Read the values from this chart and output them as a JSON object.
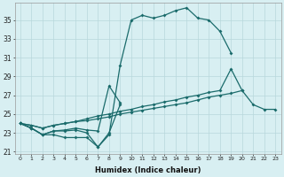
{
  "xlabel": "Humidex (Indice chaleur)",
  "background_color": "#d8eff2",
  "grid_color": "#b8d8dc",
  "line_color": "#1a6b6b",
  "xlim": [
    -0.5,
    23.5
  ],
  "ylim": [
    20.8,
    36.8
  ],
  "yticks": [
    21,
    23,
    25,
    27,
    29,
    31,
    33,
    35
  ],
  "xticks": [
    0,
    1,
    2,
    3,
    4,
    5,
    6,
    7,
    8,
    9,
    10,
    11,
    12,
    13,
    14,
    15,
    16,
    17,
    18,
    19,
    20,
    21,
    22,
    23
  ],
  "line1_x": [
    0,
    1,
    2,
    3,
    4,
    5,
    6,
    7,
    8,
    9,
    10,
    11,
    12,
    13,
    14,
    15,
    16,
    17,
    18,
    19
  ],
  "line1_y": [
    24.0,
    23.5,
    22.8,
    22.8,
    22.5,
    22.5,
    22.5,
    21.5,
    22.8,
    30.2,
    35.0,
    35.5,
    35.2,
    35.5,
    36.0,
    36.3,
    35.2,
    35.0,
    33.8,
    31.5
  ],
  "line2_x": [
    0,
    1,
    2,
    3,
    4,
    5,
    6,
    7,
    8,
    9,
    10,
    11,
    12,
    13,
    14,
    15,
    16,
    17,
    18,
    19,
    20,
    21,
    22,
    23
  ],
  "line2_y": [
    24.0,
    23.5,
    22.8,
    23.2,
    23.2,
    23.3,
    23.0,
    21.5,
    23.0,
    26.0,
    null,
    null,
    null,
    null,
    null,
    null,
    null,
    null,
    null,
    null,
    null,
    null,
    null,
    null
  ],
  "line3_x": [
    0,
    1,
    2,
    3,
    4,
    5,
    6,
    7,
    8,
    9,
    10,
    11,
    12,
    13,
    14,
    15,
    16,
    17,
    18,
    19,
    20,
    21,
    22,
    23
  ],
  "line3_y": [
    24.0,
    23.5,
    22.8,
    23.2,
    23.3,
    23.5,
    23.3,
    23.2,
    28.0,
    26.2,
    null,
    null,
    null,
    null,
    null,
    null,
    null,
    null,
    null,
    null,
    null,
    null,
    null,
    null
  ],
  "line4_x": [
    0,
    1,
    2,
    3,
    4,
    5,
    6,
    7,
    8,
    9,
    10,
    11,
    12,
    13,
    14,
    15,
    16,
    17,
    18,
    19,
    20,
    21,
    22,
    23
  ],
  "line4_y": [
    24.0,
    23.8,
    23.5,
    23.8,
    24.0,
    24.2,
    24.3,
    24.5,
    24.7,
    25.0,
    25.2,
    25.4,
    25.6,
    25.8,
    26.0,
    26.2,
    26.5,
    26.8,
    27.0,
    27.2,
    27.5,
    26.0,
    25.5,
    25.5
  ],
  "line5_x": [
    0,
    1,
    2,
    3,
    4,
    5,
    6,
    7,
    8,
    9,
    10,
    11,
    12,
    13,
    14,
    15,
    16,
    17,
    18,
    19,
    20,
    21,
    22,
    23
  ],
  "line5_y": [
    24.0,
    23.8,
    23.5,
    23.8,
    24.0,
    24.2,
    24.5,
    24.8,
    25.0,
    25.3,
    25.5,
    25.8,
    26.0,
    26.3,
    26.5,
    26.8,
    27.0,
    27.3,
    27.5,
    29.8,
    27.5,
    null,
    null,
    null
  ]
}
